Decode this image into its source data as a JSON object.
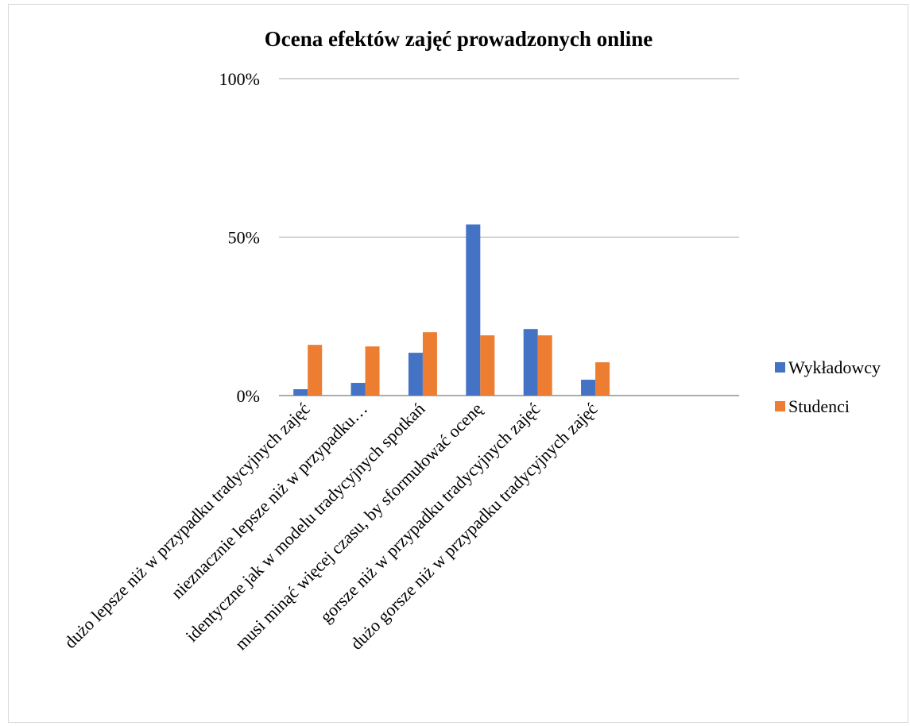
{
  "chart_data": {
    "type": "bar",
    "title": "Ocena efektów zajęć prowadzonych online",
    "xlabel": "",
    "ylabel": "",
    "ylim": [
      0,
      100
    ],
    "yticks": [
      {
        "value": 0,
        "label": "0%"
      },
      {
        "value": 50,
        "label": "50%"
      },
      {
        "value": 100,
        "label": "100%"
      }
    ],
    "grid": true,
    "legend_position": "right",
    "categories": [
      "dużo lepsze niż w przypadku tradycyjnych zajęć",
      "nieznacznie lepsze niż w przypadku…",
      "identyczne jak w modelu tradycyjnych spotkań",
      "musi minąć więcej czasu, by sformułować ocenę",
      "gorsze niż w przypadku tradycyjnych zajęć",
      "dużo gorsze niż w przypadku tradycyjnych zajęć"
    ],
    "series": [
      {
        "name": "Wykładowcy",
        "color": "#4472C4",
        "values": [
          2,
          4,
          13.5,
          54,
          21,
          5
        ]
      },
      {
        "name": "Studenci",
        "color": "#ED7D31",
        "values": [
          16,
          15.5,
          20,
          19,
          19,
          10.5
        ]
      }
    ]
  }
}
